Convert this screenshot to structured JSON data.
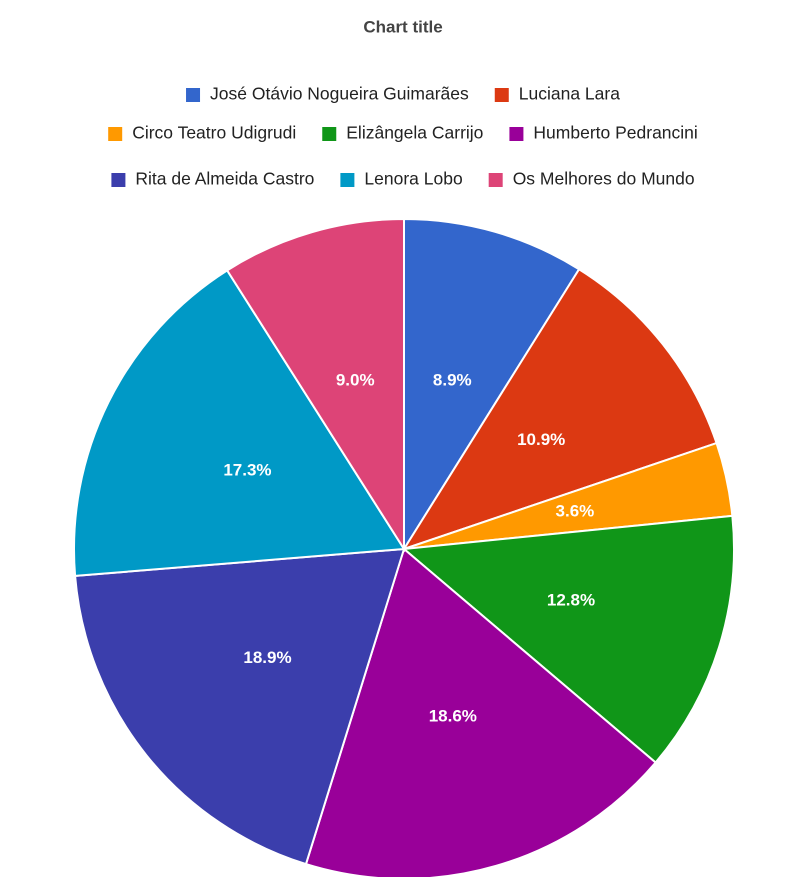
{
  "chart_data": {
    "type": "pie",
    "title": "Chart title",
    "categories": [
      "José Otávio Nogueira Guimarães",
      "Luciana Lara",
      "Circo Teatro Udigrudi",
      "Elizângela Carrijo",
      "Humberto Pedrancini",
      "Rita de Almeida Castro",
      "Lenora Lobo",
      "Os Melhores do Mundo"
    ],
    "values": [
      8.9,
      10.9,
      3.6,
      12.8,
      18.6,
      18.9,
      17.3,
      9.0
    ],
    "value_labels": [
      "8.9%",
      "10.9%",
      "3.6%",
      "12.8%",
      "18.6%",
      "18.9%",
      "17.3%",
      "9.0%"
    ],
    "colors": [
      "#3366cc",
      "#dc3912",
      "#ff9900",
      "#109618",
      "#990099",
      "#3b3eac",
      "#0099c6",
      "#dd4477"
    ],
    "legend": "top"
  }
}
